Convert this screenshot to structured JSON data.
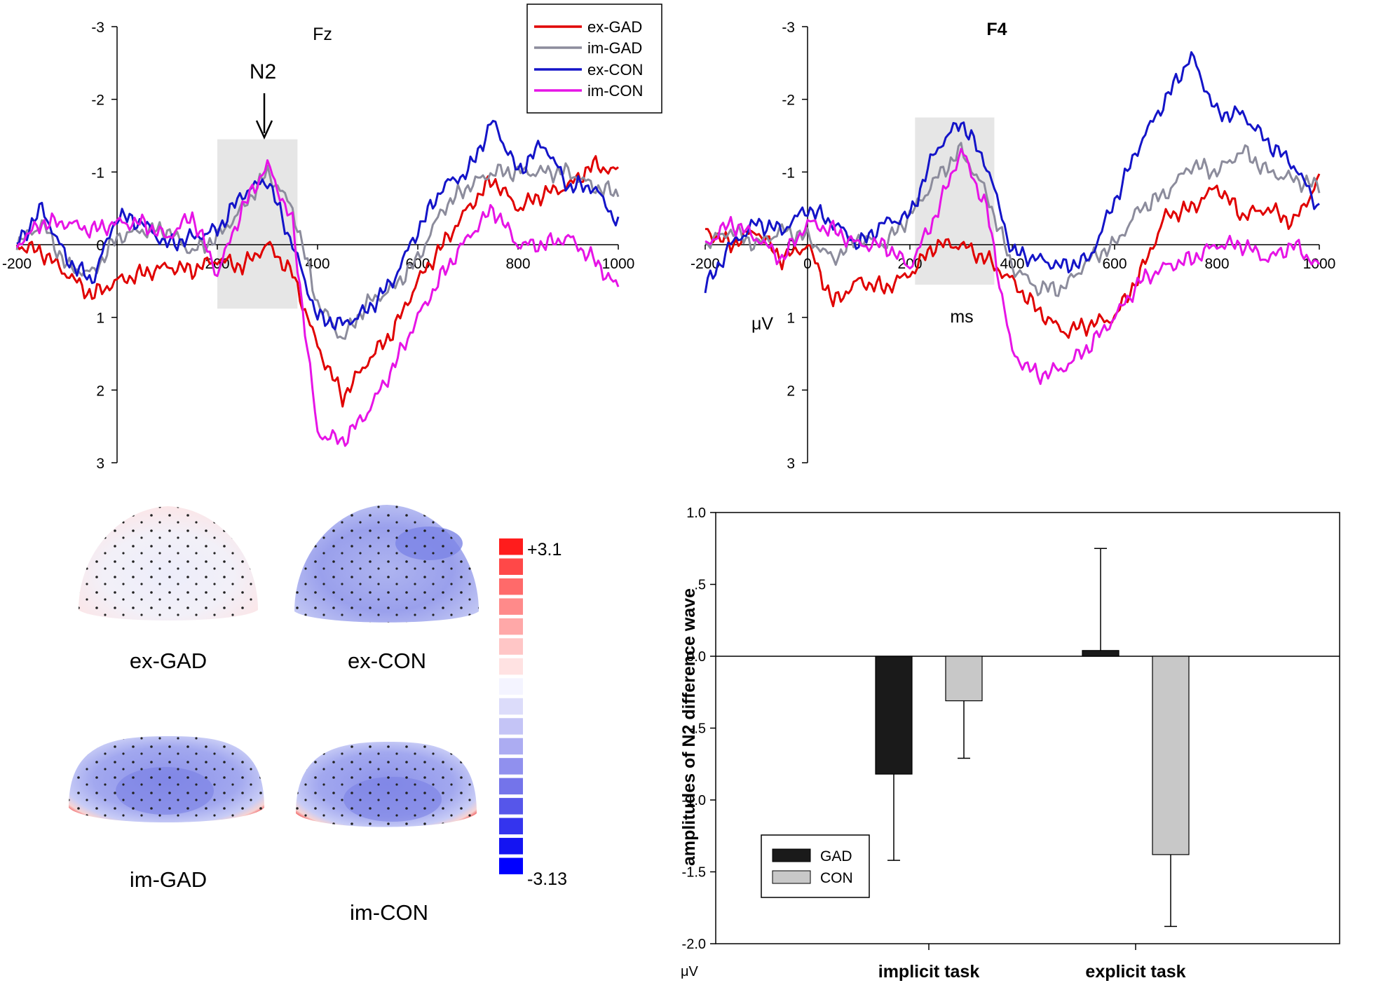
{
  "colors": {
    "ex_GAD": "#e00000",
    "im_GAD": "#8c8c9c",
    "ex_CON": "#1414c8",
    "im_CON": "#e614e6",
    "gad_bar": "#1a1a1a",
    "con_bar": "#c8c8c8",
    "n2_window": "#e6e6e6"
  },
  "chart_data": [
    {
      "id": "erp-fz",
      "type": "line",
      "title": "Fz",
      "xlabel": "",
      "ylabel": "",
      "xlim": [
        -200,
        1000
      ],
      "ylim": [
        -3,
        3
      ],
      "y_inverted": true,
      "xticks": [
        "-200",
        "200",
        "400",
        "600",
        "800",
        "1000"
      ],
      "xtick_values": [
        -200,
        200,
        400,
        600,
        800,
        1000
      ],
      "yticks": [
        "-3",
        "-2",
        "-1",
        "0",
        "1",
        "2",
        "3"
      ],
      "ytick_values": [
        -3,
        -2,
        -1,
        0,
        1,
        2,
        3
      ],
      "shaded_window": {
        "x": [
          200,
          360
        ],
        "y": [
          -1.45,
          0.88
        ]
      },
      "annotation": "N2",
      "annotation_x": 305,
      "series": [
        {
          "name": "ex-GAD",
          "color_key": "ex_GAD",
          "x": [
            -200,
            -150,
            -100,
            -50,
            0,
            50,
            100,
            150,
            200,
            250,
            300,
            350,
            400,
            450,
            500,
            550,
            600,
            650,
            700,
            750,
            800,
            850,
            900,
            950,
            1000
          ],
          "y": [
            0.0,
            0.1,
            0.4,
            0.7,
            0.5,
            0.4,
            0.3,
            0.35,
            0.2,
            0.3,
            0.0,
            0.4,
            1.4,
            2.1,
            1.6,
            1.2,
            0.5,
            0.0,
            -0.5,
            -0.9,
            -0.5,
            -0.7,
            -0.8,
            -1.1,
            -1.0
          ]
        },
        {
          "name": "im-GAD",
          "color_key": "im_GAD",
          "x": [
            -200,
            -150,
            -100,
            -50,
            0,
            50,
            100,
            150,
            200,
            250,
            300,
            350,
            400,
            450,
            500,
            550,
            600,
            650,
            700,
            750,
            800,
            850,
            900,
            950,
            1000
          ],
          "y": [
            0.0,
            -0.3,
            0.3,
            0.4,
            -0.1,
            -0.2,
            -0.2,
            0.1,
            -0.1,
            -0.5,
            -1.0,
            -0.5,
            0.8,
            1.3,
            0.8,
            0.6,
            0.2,
            -0.5,
            -0.8,
            -1.0,
            -1.0,
            -1.0,
            -1.0,
            -0.8,
            -0.7
          ]
        },
        {
          "name": "ex-CON",
          "color_key": "ex_CON",
          "x": [
            -200,
            -150,
            -100,
            -50,
            0,
            50,
            100,
            150,
            200,
            250,
            300,
            350,
            400,
            450,
            500,
            550,
            600,
            650,
            700,
            750,
            800,
            850,
            900,
            950,
            1000
          ],
          "y": [
            0.0,
            -0.5,
            0.2,
            0.5,
            -0.4,
            -0.3,
            0.0,
            -0.1,
            -0.2,
            -0.7,
            -0.9,
            0.0,
            1.0,
            1.1,
            0.9,
            0.5,
            -0.2,
            -0.8,
            -1.0,
            -1.7,
            -1.0,
            -1.4,
            -0.8,
            -0.8,
            -0.3
          ]
        },
        {
          "name": "im-CON",
          "color_key": "im_CON",
          "x": [
            -200,
            -150,
            -100,
            -50,
            0,
            50,
            100,
            150,
            200,
            250,
            300,
            350,
            400,
            450,
            500,
            550,
            600,
            650,
            700,
            750,
            800,
            850,
            900,
            950,
            1000
          ],
          "y": [
            0.0,
            -0.3,
            -0.3,
            -0.2,
            -0.3,
            -0.3,
            -0.1,
            -0.4,
            0.4,
            -0.5,
            -1.1,
            -0.3,
            2.6,
            2.7,
            2.3,
            1.7,
            1.0,
            0.4,
            -0.1,
            -0.5,
            0.0,
            0.0,
            -0.1,
            0.2,
            0.6
          ]
        }
      ]
    },
    {
      "id": "erp-f4",
      "type": "line",
      "title": "F4",
      "xlabel": "ms",
      "ylabel": "μV",
      "xlim": [
        -200,
        1000
      ],
      "ylim": [
        -3,
        3
      ],
      "y_inverted": true,
      "xticks": [
        "-200",
        "0",
        "200",
        "400",
        "600",
        "800",
        "1000"
      ],
      "xtick_values": [
        -200,
        0,
        200,
        400,
        600,
        800,
        1000
      ],
      "yticks": [
        "-3",
        "-2",
        "-1",
        "0",
        "1",
        "2",
        "3"
      ],
      "ytick_values": [
        -3,
        -2,
        -1,
        0,
        1,
        2,
        3
      ],
      "shaded_window": {
        "x": [
          210,
          365
        ],
        "y": [
          -1.75,
          0.55
        ]
      },
      "series": [
        {
          "name": "ex-GAD",
          "color_key": "ex_GAD",
          "x": [
            -200,
            -150,
            -100,
            -50,
            0,
            50,
            100,
            150,
            200,
            250,
            300,
            350,
            400,
            450,
            500,
            550,
            600,
            650,
            700,
            750,
            800,
            850,
            900,
            950,
            1000
          ],
          "y": [
            -0.2,
            0.0,
            -0.2,
            0.2,
            0.0,
            0.8,
            0.5,
            0.6,
            0.4,
            0.0,
            0.0,
            0.2,
            0.5,
            0.9,
            1.2,
            1.1,
            1.0,
            0.4,
            -0.4,
            -0.5,
            -0.8,
            -0.4,
            -0.5,
            -0.3,
            -0.9
          ]
        },
        {
          "name": "im-GAD",
          "color_key": "im_GAD",
          "x": [
            -200,
            -150,
            -100,
            -50,
            0,
            50,
            100,
            150,
            200,
            250,
            300,
            350,
            400,
            450,
            500,
            550,
            600,
            650,
            700,
            750,
            800,
            850,
            900,
            950,
            1000
          ],
          "y": [
            0.0,
            -0.2,
            0.0,
            -0.2,
            -0.1,
            0.2,
            -0.1,
            0.0,
            -0.4,
            -0.9,
            -1.3,
            -0.7,
            0.3,
            0.6,
            0.6,
            0.2,
            0.0,
            -0.5,
            -0.7,
            -1.1,
            -1.0,
            -1.3,
            -1.0,
            -0.9,
            -0.8
          ]
        },
        {
          "name": "ex-CON",
          "color_key": "ex_CON",
          "x": [
            -200,
            -150,
            -100,
            -50,
            0,
            50,
            100,
            150,
            200,
            250,
            300,
            350,
            400,
            450,
            500,
            550,
            600,
            650,
            700,
            750,
            800,
            850,
            900,
            950,
            1000
          ],
          "y": [
            0.6,
            0.0,
            -0.3,
            -0.2,
            -0.5,
            -0.3,
            0.0,
            -0.3,
            -0.4,
            -1.3,
            -1.7,
            -1.1,
            0.1,
            0.2,
            0.3,
            0.2,
            -0.6,
            -1.4,
            -2.0,
            -2.6,
            -1.8,
            -1.8,
            -1.4,
            -1.1,
            -0.5
          ]
        },
        {
          "name": "im-CON",
          "color_key": "im_CON",
          "x": [
            -200,
            -150,
            -100,
            -50,
            0,
            50,
            100,
            150,
            200,
            250,
            300,
            350,
            400,
            450,
            500,
            550,
            600,
            650,
            700,
            750,
            800,
            850,
            900,
            950,
            1000
          ],
          "y": [
            0.0,
            -0.3,
            -0.1,
            0.2,
            -0.3,
            -0.2,
            0.0,
            0.0,
            0.3,
            -0.4,
            -1.3,
            -0.5,
            1.5,
            1.8,
            1.7,
            1.4,
            1.0,
            0.5,
            0.3,
            0.2,
            0.0,
            0.0,
            0.2,
            0.0,
            0.3
          ]
        }
      ]
    },
    {
      "id": "n2-bar",
      "type": "bar",
      "title": "",
      "xlabel": "",
      "ylabel": "amplitudes of N2 difference wave",
      "y_unit": "μV",
      "ylim": [
        -2.0,
        1.0
      ],
      "yticks": [
        "1.0",
        ".5",
        "0.0",
        "-.5",
        "-1.0",
        "-1.5",
        "-2.0"
      ],
      "ytick_values": [
        1.0,
        0.5,
        0.0,
        -0.5,
        -1.0,
        -1.5,
        -2.0
      ],
      "categories": [
        "implicit task",
        "explicit task"
      ],
      "legend_position": "bottom-left",
      "series": [
        {
          "name": "GAD",
          "color_key": "gad_bar",
          "values": [
            -0.82,
            0.04
          ],
          "errors": [
            0.6,
            0.71
          ]
        },
        {
          "name": "CON",
          "color_key": "con_bar",
          "values": [
            -0.31,
            -1.38
          ],
          "errors": [
            0.4,
            0.5
          ]
        }
      ]
    }
  ],
  "topomaps": {
    "items": [
      {
        "label": "ex-GAD",
        "pattern": "neutral"
      },
      {
        "label": "ex-CON",
        "pattern": "blue"
      },
      {
        "label": "im-GAD",
        "pattern": "blue-edge-red"
      },
      {
        "label": "im-CON",
        "pattern": "blue-edge-red"
      }
    ],
    "scale_max_label": "+3.1",
    "scale_min_label": "-3.13",
    "scale_max": 3.1,
    "scale_min": -3.13,
    "scale_colors": [
      "#ff1c1c",
      "#ff4848",
      "#ff6a6a",
      "#ff8a8a",
      "#ffa8a8",
      "#ffc6c6",
      "#ffe2e2",
      "#f4f4ff",
      "#dcdcfa",
      "#c4c4f6",
      "#acacf2",
      "#9090ee",
      "#7474ea",
      "#5656ea",
      "#3434ee",
      "#1414f2",
      "#0000ff"
    ]
  }
}
